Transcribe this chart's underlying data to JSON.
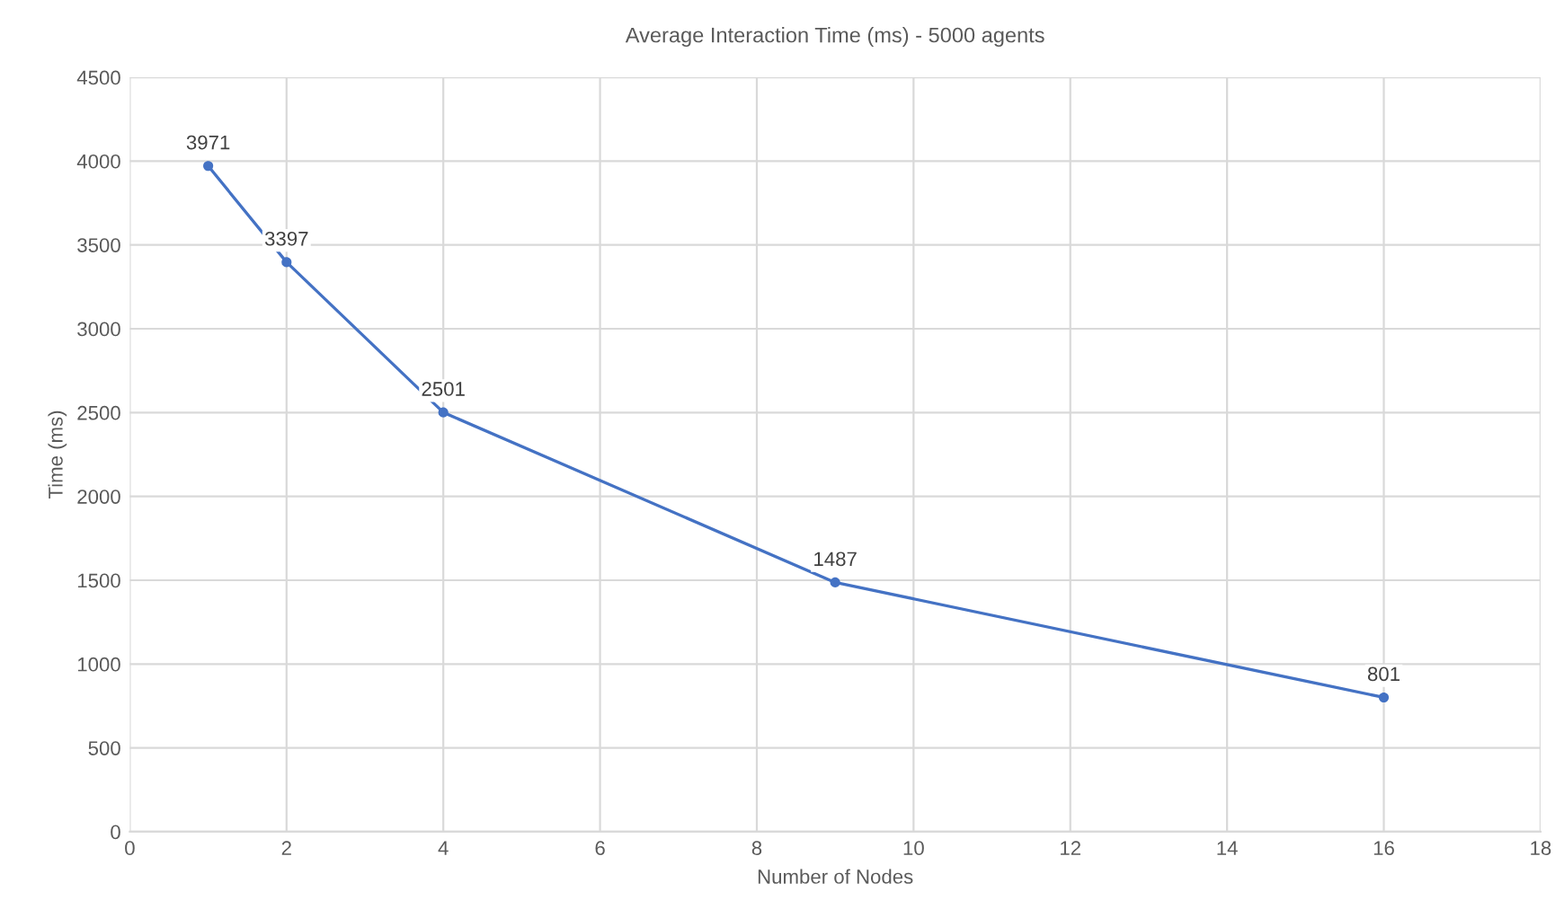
{
  "chart_data": {
    "type": "line",
    "title": "Average Interaction Time (ms) - 5000 agents",
    "xlabel": "Number of Nodes",
    "ylabel": "Time (ms)",
    "x": [
      1,
      2,
      4,
      9,
      16
    ],
    "series": [
      {
        "color": "#4472c4",
        "values": [
          3971,
          3397,
          2501,
          1487,
          801
        ]
      }
    ],
    "xlim": [
      0,
      18
    ],
    "xticks": [
      0,
      2,
      4,
      6,
      8,
      10,
      12,
      14,
      16,
      18
    ],
    "ylim": [
      0,
      4500
    ],
    "yticks": [
      0,
      500,
      1000,
      1500,
      2000,
      2500,
      3000,
      3500,
      4000,
      4500
    ],
    "grid": true,
    "marker": "circle",
    "line_style": "solid",
    "data_labels": true
  }
}
